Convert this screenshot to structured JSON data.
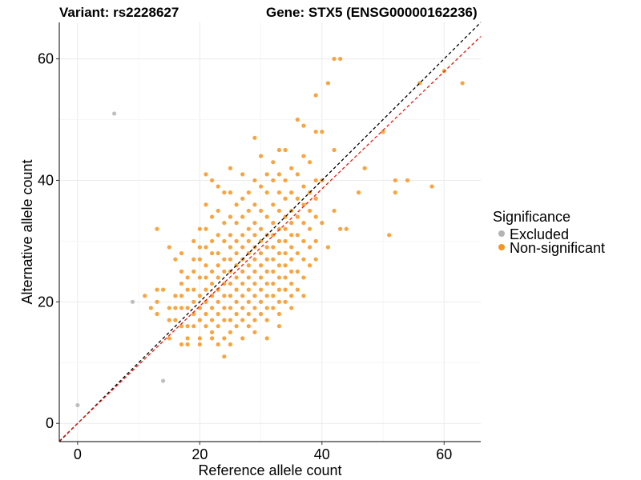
{
  "chart_data": {
    "type": "scatter",
    "title_left": "Variant: rs2228627",
    "title_right": "Gene: STX5 (ENSG00000162236)",
    "xlabel": "Reference allele count",
    "ylabel": "Alternative allele count",
    "xlim": [
      -3,
      66
    ],
    "ylim": [
      -3,
      66
    ],
    "x_ticks": [
      0,
      20,
      40,
      60
    ],
    "y_ticks": [
      0,
      20,
      40,
      60
    ],
    "grid": true,
    "legend": {
      "title": "Significance",
      "placement": "right",
      "entries": [
        {
          "label": "Excluded",
          "color": "#b3b3b3"
        },
        {
          "label": "Non-significant",
          "color": "#f7941d"
        }
      ]
    },
    "reference_lines": [
      {
        "name": "identity",
        "slope": 1,
        "intercept": 0,
        "color": "#000000",
        "dash": true
      },
      {
        "name": "fit",
        "slope": 0.965,
        "intercept": 0,
        "color": "#e8190c",
        "dash": true
      }
    ],
    "series": [
      {
        "name": "Excluded",
        "color": "#b3b3b3",
        "points": [
          [
            0,
            3
          ],
          [
            6,
            51
          ],
          [
            9,
            20
          ],
          [
            14,
            7
          ]
        ]
      },
      {
        "name": "Non-significant",
        "color": "#f7941d",
        "points": [
          [
            11,
            21
          ],
          [
            12,
            19
          ],
          [
            13,
            32
          ],
          [
            13,
            22
          ],
          [
            13,
            20
          ],
          [
            13,
            18
          ],
          [
            14,
            22
          ],
          [
            15,
            29
          ],
          [
            15,
            19
          ],
          [
            15,
            17
          ],
          [
            15,
            14
          ],
          [
            16,
            27
          ],
          [
            16,
            21
          ],
          [
            16,
            19
          ],
          [
            16,
            17
          ],
          [
            17,
            28
          ],
          [
            17,
            25
          ],
          [
            17,
            23
          ],
          [
            17,
            21
          ],
          [
            17,
            19
          ],
          [
            17,
            16
          ],
          [
            17,
            13
          ],
          [
            18,
            24
          ],
          [
            18,
            22
          ],
          [
            18,
            19
          ],
          [
            18,
            16
          ],
          [
            18,
            14
          ],
          [
            18,
            13
          ],
          [
            19,
            30
          ],
          [
            19,
            27
          ],
          [
            19,
            25
          ],
          [
            19,
            22
          ],
          [
            19,
            20
          ],
          [
            19,
            18
          ],
          [
            19,
            16
          ],
          [
            20,
            32
          ],
          [
            20,
            29
          ],
          [
            20,
            27
          ],
          [
            20,
            24
          ],
          [
            20,
            21
          ],
          [
            20,
            19
          ],
          [
            20,
            17
          ],
          [
            20,
            14
          ],
          [
            20,
            13
          ],
          [
            21,
            41
          ],
          [
            21,
            36
          ],
          [
            21,
            32
          ],
          [
            21,
            29
          ],
          [
            21,
            26
          ],
          [
            21,
            24
          ],
          [
            21,
            22
          ],
          [
            21,
            20
          ],
          [
            21,
            18
          ],
          [
            21,
            16
          ],
          [
            22,
            40
          ],
          [
            22,
            34
          ],
          [
            22,
            30
          ],
          [
            22,
            28
          ],
          [
            22,
            25
          ],
          [
            22,
            23
          ],
          [
            22,
            21
          ],
          [
            22,
            19
          ],
          [
            22,
            17
          ],
          [
            22,
            15
          ],
          [
            22,
            14
          ],
          [
            23,
            39
          ],
          [
            23,
            35
          ],
          [
            23,
            31
          ],
          [
            23,
            28
          ],
          [
            23,
            26
          ],
          [
            23,
            24
          ],
          [
            23,
            22
          ],
          [
            23,
            20
          ],
          [
            23,
            18
          ],
          [
            23,
            16
          ],
          [
            23,
            13
          ],
          [
            24,
            38
          ],
          [
            24,
            33
          ],
          [
            24,
            30
          ],
          [
            24,
            27
          ],
          [
            24,
            25
          ],
          [
            24,
            23
          ],
          [
            24,
            21
          ],
          [
            24,
            19
          ],
          [
            24,
            17
          ],
          [
            24,
            14
          ],
          [
            24,
            11
          ],
          [
            25,
            42
          ],
          [
            25,
            38
          ],
          [
            25,
            34
          ],
          [
            25,
            31
          ],
          [
            25,
            29
          ],
          [
            25,
            27
          ],
          [
            25,
            25
          ],
          [
            25,
            23
          ],
          [
            25,
            21
          ],
          [
            25,
            19
          ],
          [
            25,
            17
          ],
          [
            25,
            15
          ],
          [
            25,
            13
          ],
          [
            26,
            36
          ],
          [
            26,
            33
          ],
          [
            26,
            30
          ],
          [
            26,
            28
          ],
          [
            26,
            26
          ],
          [
            26,
            24
          ],
          [
            26,
            22
          ],
          [
            26,
            20
          ],
          [
            26,
            18
          ],
          [
            26,
            16
          ],
          [
            27,
            41
          ],
          [
            27,
            37
          ],
          [
            27,
            34
          ],
          [
            27,
            31
          ],
          [
            27,
            29
          ],
          [
            27,
            27
          ],
          [
            27,
            25
          ],
          [
            27,
            23
          ],
          [
            27,
            21
          ],
          [
            27,
            19
          ],
          [
            27,
            17
          ],
          [
            27,
            14
          ],
          [
            28,
            38
          ],
          [
            28,
            35
          ],
          [
            28,
            32
          ],
          [
            28,
            30
          ],
          [
            28,
            28
          ],
          [
            28,
            26
          ],
          [
            28,
            24
          ],
          [
            28,
            22
          ],
          [
            28,
            20
          ],
          [
            28,
            18
          ],
          [
            28,
            16
          ],
          [
            29,
            47
          ],
          [
            29,
            40
          ],
          [
            29,
            36
          ],
          [
            29,
            33
          ],
          [
            29,
            31
          ],
          [
            29,
            29
          ],
          [
            29,
            27
          ],
          [
            29,
            25
          ],
          [
            29,
            23
          ],
          [
            29,
            21
          ],
          [
            29,
            19
          ],
          [
            29,
            17
          ],
          [
            29,
            15
          ],
          [
            30,
            44
          ],
          [
            30,
            39
          ],
          [
            30,
            35
          ],
          [
            30,
            32
          ],
          [
            30,
            30
          ],
          [
            30,
            28
          ],
          [
            30,
            26
          ],
          [
            30,
            24
          ],
          [
            30,
            22
          ],
          [
            30,
            20
          ],
          [
            30,
            18
          ],
          [
            31,
            41
          ],
          [
            31,
            38
          ],
          [
            31,
            34
          ],
          [
            31,
            31
          ],
          [
            31,
            29
          ],
          [
            31,
            27
          ],
          [
            31,
            25
          ],
          [
            31,
            23
          ],
          [
            31,
            21
          ],
          [
            31,
            19
          ],
          [
            31,
            17
          ],
          [
            31,
            14
          ],
          [
            32,
            43
          ],
          [
            32,
            40
          ],
          [
            32,
            36
          ],
          [
            32,
            33
          ],
          [
            32,
            31
          ],
          [
            32,
            29
          ],
          [
            32,
            27
          ],
          [
            32,
            25
          ],
          [
            32,
            23
          ],
          [
            32,
            21
          ],
          [
            32,
            19
          ],
          [
            33,
            45
          ],
          [
            33,
            41
          ],
          [
            33,
            38
          ],
          [
            33,
            35
          ],
          [
            33,
            32
          ],
          [
            33,
            30
          ],
          [
            33,
            28
          ],
          [
            33,
            26
          ],
          [
            33,
            24
          ],
          [
            33,
            22
          ],
          [
            33,
            20
          ],
          [
            33,
            18
          ],
          [
            33,
            16
          ],
          [
            34,
            45
          ],
          [
            34,
            40
          ],
          [
            34,
            37
          ],
          [
            34,
            34
          ],
          [
            34,
            32
          ],
          [
            34,
            30
          ],
          [
            34,
            28
          ],
          [
            34,
            26
          ],
          [
            34,
            24
          ],
          [
            34,
            22
          ],
          [
            34,
            20
          ],
          [
            35,
            42
          ],
          [
            35,
            38
          ],
          [
            35,
            35
          ],
          [
            35,
            33
          ],
          [
            35,
            31
          ],
          [
            35,
            29
          ],
          [
            35,
            27
          ],
          [
            35,
            25
          ],
          [
            35,
            23
          ],
          [
            35,
            21
          ],
          [
            35,
            19
          ],
          [
            36,
            50
          ],
          [
            36,
            41
          ],
          [
            36,
            37
          ],
          [
            36,
            34
          ],
          [
            36,
            31
          ],
          [
            36,
            28
          ],
          [
            36,
            25
          ],
          [
            36,
            22
          ],
          [
            37,
            49
          ],
          [
            37,
            44
          ],
          [
            37,
            39
          ],
          [
            37,
            36
          ],
          [
            37,
            33
          ],
          [
            37,
            30
          ],
          [
            37,
            27
          ],
          [
            37,
            24
          ],
          [
            37,
            21
          ],
          [
            38,
            43
          ],
          [
            38,
            38
          ],
          [
            38,
            35
          ],
          [
            38,
            32
          ],
          [
            38,
            29
          ],
          [
            38,
            26
          ],
          [
            39,
            54
          ],
          [
            39,
            48
          ],
          [
            39,
            40
          ],
          [
            39,
            37
          ],
          [
            39,
            34
          ],
          [
            39,
            30
          ],
          [
            39,
            27
          ],
          [
            40,
            48
          ],
          [
            40,
            40
          ],
          [
            40,
            33
          ],
          [
            41,
            56
          ],
          [
            41,
            29
          ],
          [
            42,
            60
          ],
          [
            42,
            45
          ],
          [
            42,
            35
          ],
          [
            43,
            60
          ],
          [
            43,
            32
          ],
          [
            44,
            32
          ],
          [
            46,
            38
          ],
          [
            47,
            42
          ],
          [
            50,
            48
          ],
          [
            51,
            31
          ],
          [
            52,
            40
          ],
          [
            52,
            38
          ],
          [
            54,
            40
          ],
          [
            56,
            56
          ],
          [
            58,
            39
          ],
          [
            60,
            58
          ],
          [
            63,
            56
          ]
        ]
      }
    ]
  }
}
